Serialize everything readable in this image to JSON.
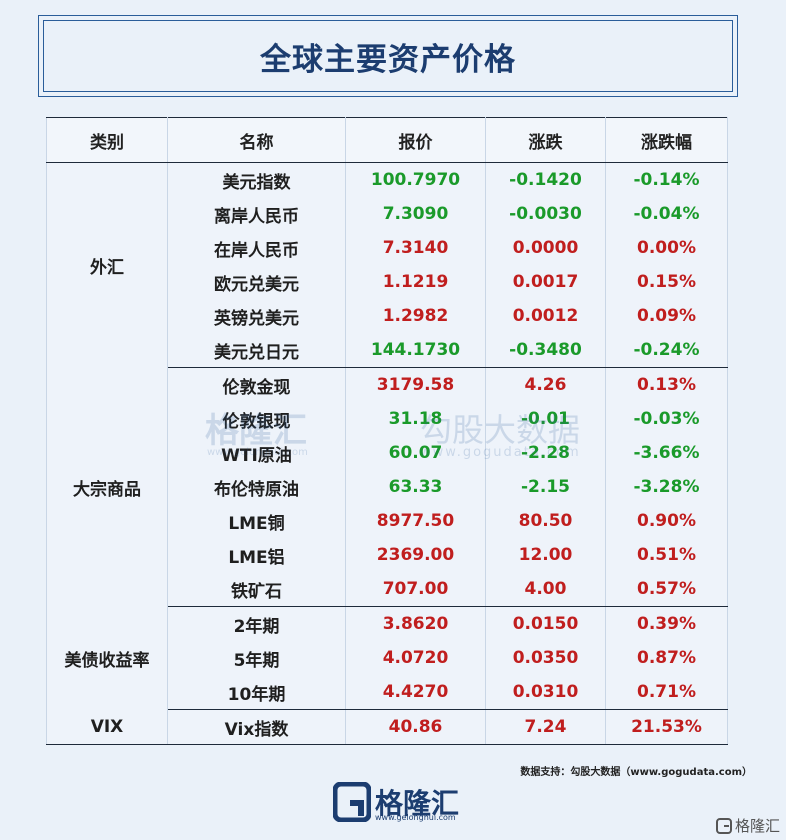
{
  "title": "全球主要资产价格",
  "headers": [
    "类别",
    "名称",
    "报价",
    "涨跌",
    "涨跌幅"
  ],
  "groups": [
    {
      "category": "外汇",
      "rows": [
        {
          "name": "美元指数",
          "price": "100.7970",
          "change": "-0.1420",
          "pct": "-0.14%",
          "dir": "down"
        },
        {
          "name": "离岸人民币",
          "price": "7.3090",
          "change": "-0.0030",
          "pct": "-0.04%",
          "dir": "down"
        },
        {
          "name": "在岸人民币",
          "price": "7.3140",
          "change": "0.0000",
          "pct": "0.00%",
          "dir": "up"
        },
        {
          "name": "欧元兑美元",
          "price": "1.1219",
          "change": "0.0017",
          "pct": "0.15%",
          "dir": "up"
        },
        {
          "name": "英镑兑美元",
          "price": "1.2982",
          "change": "0.0012",
          "pct": "0.09%",
          "dir": "up"
        },
        {
          "name": "美元兑日元",
          "price": "144.1730",
          "change": "-0.3480",
          "pct": "-0.24%",
          "dir": "down"
        }
      ]
    },
    {
      "category": "大宗商品",
      "rows": [
        {
          "name": "伦敦金现",
          "price": "3179.58",
          "change": "4.26",
          "pct": "0.13%",
          "dir": "up"
        },
        {
          "name": "伦敦银现",
          "price": "31.18",
          "change": "-0.01",
          "pct": "-0.03%",
          "dir": "down"
        },
        {
          "name": "WTI原油",
          "price": "60.07",
          "change": "-2.28",
          "pct": "-3.66%",
          "dir": "down"
        },
        {
          "name": "布伦特原油",
          "price": "63.33",
          "change": "-2.15",
          "pct": "-3.28%",
          "dir": "down"
        },
        {
          "name": "LME铜",
          "price": "8977.50",
          "change": "80.50",
          "pct": "0.90%",
          "dir": "up"
        },
        {
          "name": "LME铝",
          "price": "2369.00",
          "change": "12.00",
          "pct": "0.51%",
          "dir": "up"
        },
        {
          "name": "铁矿石",
          "price": "707.00",
          "change": "4.00",
          "pct": "0.57%",
          "dir": "up"
        }
      ]
    },
    {
      "category": "美债收益率",
      "rows": [
        {
          "name": "2年期",
          "price": "3.8620",
          "change": "0.0150",
          "pct": "0.39%",
          "dir": "up"
        },
        {
          "name": "5年期",
          "price": "4.0720",
          "change": "0.0350",
          "pct": "0.87%",
          "dir": "up"
        },
        {
          "name": "10年期",
          "price": "4.4270",
          "change": "0.0310",
          "pct": "0.71%",
          "dir": "up"
        }
      ]
    },
    {
      "category": "VIX",
      "rows": [
        {
          "name": "Vix指数",
          "price": "40.86",
          "change": "7.24",
          "pct": "21.53%",
          "dir": "up"
        }
      ]
    }
  ],
  "colors": {
    "up": "#c01e1e",
    "down": "#1a9a2a",
    "accent": "#1c3d70"
  },
  "watermark": {
    "brand": "格隆汇",
    "brand_url": "www.gelonghui.com",
    "right": "勾股大数据",
    "url": "www.gogudata.com"
  },
  "source_note": "数据支持：勾股大数据（www.gogudata.com）",
  "logo": {
    "text": "格隆汇",
    "url": "www.gelonghui.com"
  },
  "corner_mark": "格隆汇"
}
